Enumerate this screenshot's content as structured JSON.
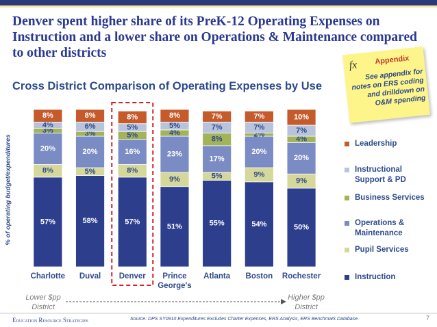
{
  "header": {
    "title": "Denver spent higher share of its PreK-12 Operating Expenses on Instruction and a lower share on Operations & Maintenance compared to other districts",
    "subtitle": "Cross District Comparison of Operating Expenses by Use"
  },
  "note": {
    "icon": "fx",
    "title": "Appendix",
    "text": "See appendix for notes on ERS coding and drilldown on O&M spending"
  },
  "chart_data": {
    "type": "bar",
    "stacked": true,
    "y_label": "% of operating budget/expenditures",
    "categories": [
      "Charlotte",
      "Duval",
      "Denver",
      "Prince George's",
      "Atlanta",
      "Boston",
      "Rochester"
    ],
    "series": [
      {
        "name": "Instruction",
        "color": "#2c3e8c",
        "values": [
          57,
          58,
          57,
          51,
          55,
          54,
          50
        ],
        "value_labels": [
          "57%",
          "58%",
          "57%",
          "51%",
          "55%",
          "54%",
          "50%"
        ]
      },
      {
        "name": "Pupil Services",
        "color": "#d5d79b",
        "values": [
          8,
          5,
          8,
          9,
          5,
          9,
          9
        ],
        "value_labels": [
          "8%",
          "5%",
          "8%",
          "9%",
          "5%",
          "9%",
          "9%"
        ]
      },
      {
        "name": "Operations & Maintenance",
        "color": "#7b8cc4",
        "values": [
          20,
          20,
          16,
          23,
          17,
          20,
          20
        ],
        "value_labels": [
          "20%",
          "20%",
          "16%",
          "23%",
          "17%",
          "20%",
          "20%"
        ]
      },
      {
        "name": "Business Services",
        "color": "#a3b35a",
        "values": [
          3,
          3,
          5,
          4,
          8,
          2,
          4
        ],
        "value_labels": [
          "3%",
          "3%",
          "5%",
          "4%",
          "8%",
          "2%",
          "4%"
        ]
      },
      {
        "name": "Instructional Support & PD",
        "color": "#b9c4dc",
        "values": [
          4,
          6,
          5,
          5,
          7,
          7,
          7
        ],
        "value_labels": [
          "4%",
          "6%",
          "5%",
          "5%",
          "7%",
          "7%",
          "7%"
        ]
      },
      {
        "name": "Leadership",
        "color": "#c55a2b",
        "values": [
          8,
          8,
          8,
          8,
          7,
          7,
          10
        ],
        "value_labels": [
          "8%",
          "8%",
          "8%",
          "8%",
          "7%",
          "7%",
          "10%"
        ]
      }
    ],
    "ylim": [
      0,
      100
    ],
    "highlight": "Denver",
    "legend": "right"
  },
  "scale": {
    "low": "Lower $pp District",
    "high": "Higher $pp District"
  },
  "footer": {
    "organization": "Education Resource Strategies",
    "source": "Source:   DPS SY0910 Expenditures Excludes Charter Expenses, ERS Analysis, ERS Benchmark Database.",
    "page": 7
  }
}
